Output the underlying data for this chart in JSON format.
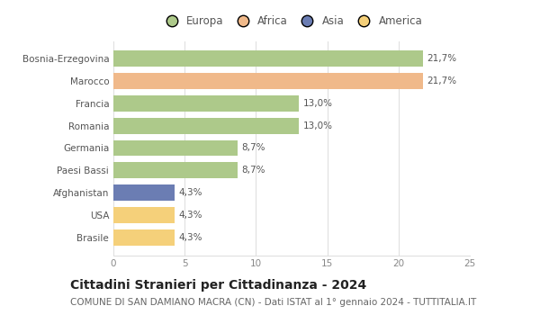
{
  "categories": [
    "Bosnia-Erzegovina",
    "Marocco",
    "Francia",
    "Romania",
    "Germania",
    "Paesi Bassi",
    "Afghanistan",
    "USA",
    "Brasile"
  ],
  "values": [
    21.7,
    21.7,
    13.0,
    13.0,
    8.7,
    8.7,
    4.3,
    4.3,
    4.3
  ],
  "labels": [
    "21,7%",
    "21,7%",
    "13,0%",
    "13,0%",
    "8,7%",
    "8,7%",
    "4,3%",
    "4,3%",
    "4,3%"
  ],
  "colors": [
    "#adc98a",
    "#f0b98a",
    "#adc98a",
    "#adc98a",
    "#adc98a",
    "#adc98a",
    "#6b7db3",
    "#f5d07a",
    "#f5d07a"
  ],
  "legend": [
    {
      "label": "Europa",
      "color": "#adc98a"
    },
    {
      "label": "Africa",
      "color": "#f0b98a"
    },
    {
      "label": "Asia",
      "color": "#6b7db3"
    },
    {
      "label": "America",
      "color": "#f5d07a"
    }
  ],
  "xlim": [
    0,
    25
  ],
  "xticks": [
    0,
    5,
    10,
    15,
    20,
    25
  ],
  "title": "Cittadini Stranieri per Cittadinanza - 2024",
  "subtitle": "COMUNE DI SAN DAMIANO MACRA (CN) - Dati ISTAT al 1° gennaio 2024 - TUTTITALIA.IT",
  "title_fontsize": 10,
  "subtitle_fontsize": 7.5,
  "label_fontsize": 7.5,
  "tick_fontsize": 7.5,
  "legend_fontsize": 8.5,
  "background_color": "#ffffff",
  "bar_height": 0.72
}
